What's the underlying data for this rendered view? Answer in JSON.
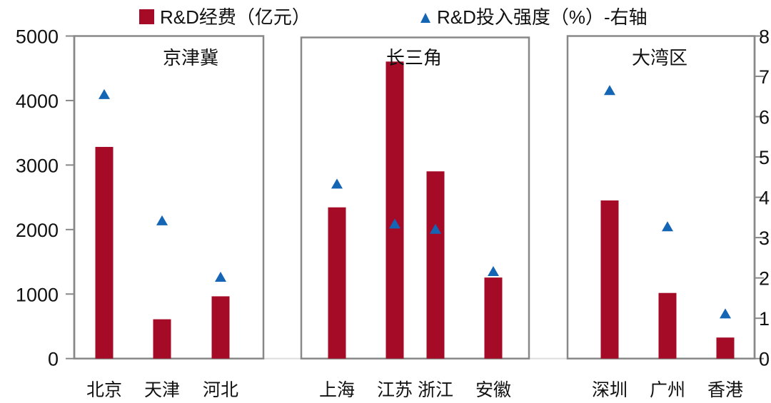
{
  "chart_data": {
    "type": "bar",
    "categories": [
      "北京",
      "天津",
      "河北",
      "上海",
      "江苏",
      "浙江",
      "安徽",
      "深圳",
      "广州",
      "香港"
    ],
    "groups": [
      {
        "name": "京津冀",
        "categories": [
          "北京",
          "天津",
          "河北"
        ]
      },
      {
        "name": "长三角",
        "categories": [
          "上海",
          "江苏",
          "浙江",
          "安徽"
        ]
      },
      {
        "name": "大湾区",
        "categories": [
          "深圳",
          "广州",
          "香港"
        ]
      }
    ],
    "series": [
      {
        "name": "R&D经费（亿元）",
        "type": "bar",
        "axis": "left",
        "color": "#A50A26",
        "values": [
          3281,
          609,
          965,
          2344,
          4604,
          2902,
          1256,
          2451,
          1017,
          326
        ]
      },
      {
        "name": "R&D投入强度（%）-右轴",
        "type": "scatter",
        "marker": "triangle",
        "axis": "right",
        "color": "#1565B5",
        "values": [
          6.56,
          3.43,
          2.03,
          4.34,
          3.35,
          3.22,
          2.17,
          6.66,
          3.28,
          1.12
        ]
      }
    ],
    "ylim": [
      0,
      5000
    ],
    "yticks": [
      "0",
      "1000",
      "2000",
      "3000",
      "4000",
      "5000"
    ],
    "y2lim": [
      0,
      8
    ],
    "y2ticks": [
      "0",
      "1",
      "2",
      "3",
      "4",
      "5",
      "6",
      "7",
      "8"
    ],
    "legend": "top",
    "grid": false
  }
}
